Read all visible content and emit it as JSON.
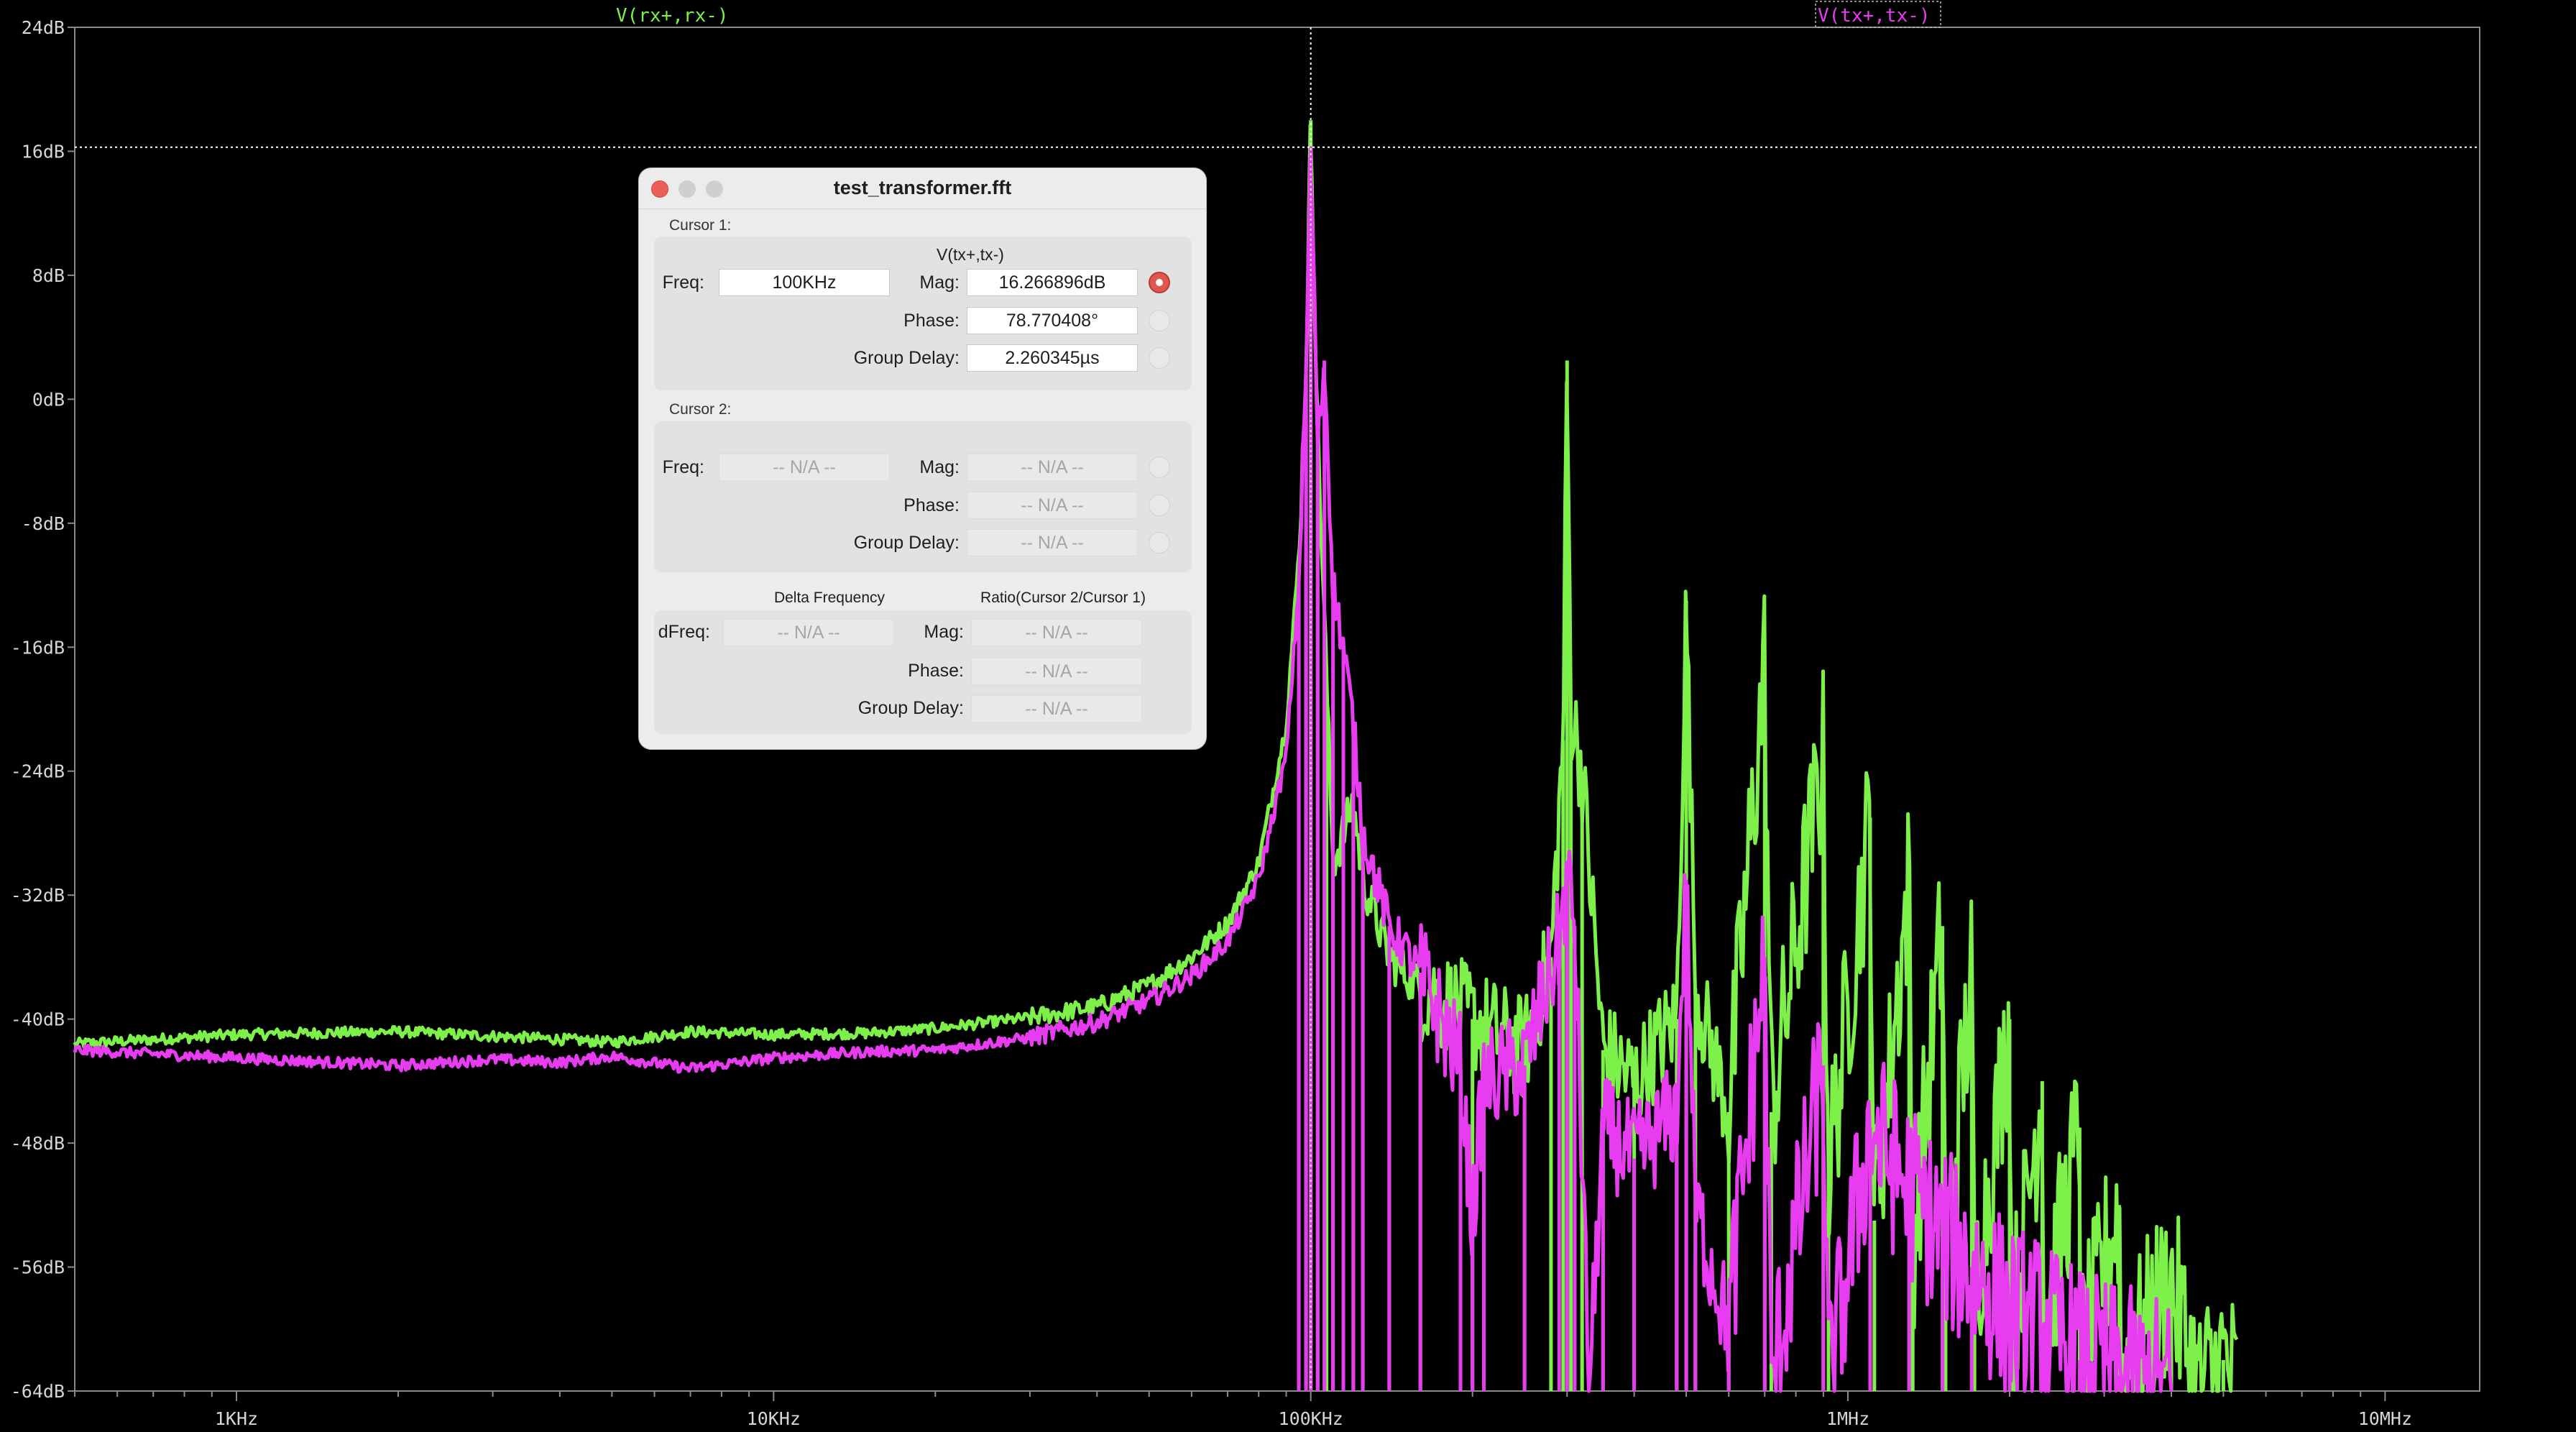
{
  "plot": {
    "trace_labels": [
      {
        "text": "V(rx+,rx-)",
        "color": "#7ef04a"
      },
      {
        "text": "V(tx+,tx-)",
        "color": "#e83cf0"
      }
    ],
    "colors": {
      "background": "#000000",
      "grid": "#8a8a8a",
      "cursor": "#ffffff"
    },
    "cursor_1": {
      "freq_hz": 100000,
      "mag_db": 16.266896
    }
  },
  "chart_data": {
    "type": "line",
    "x_scale": "log",
    "xlim_hz": [
      500,
      15000000
    ],
    "ylim_db": [
      -64,
      24
    ],
    "y_ticks": [
      "24dB",
      "16dB",
      "8dB",
      "0dB",
      "-8dB",
      "-16dB",
      "-24dB",
      "-32dB",
      "-40dB",
      "-48dB",
      "-56dB",
      "-64dB"
    ],
    "x_ticks": [
      "1KHz",
      "10KHz",
      "100KHz",
      "1MHz",
      "10MHz"
    ],
    "series": [
      {
        "name": "V(rx+,rx-)",
        "color": "#7ef04a",
        "points": [
          [
            500,
            -41.6
          ],
          [
            1000,
            -41.0
          ],
          [
            2000,
            -40.8
          ],
          [
            3000,
            -41.1
          ],
          [
            4000,
            -41.3
          ],
          [
            5000,
            -41.5
          ],
          [
            7000,
            -40.8
          ],
          [
            10000,
            -41.0
          ],
          [
            15000,
            -40.9
          ],
          [
            20000,
            -40.6
          ],
          [
            30000,
            -39.9
          ],
          [
            40000,
            -39.2
          ],
          [
            50000,
            -37.8
          ],
          [
            60000,
            -36.0
          ],
          [
            70000,
            -33.8
          ],
          [
            80000,
            -29.9
          ],
          [
            90000,
            -21.0
          ],
          [
            95000,
            -10.0
          ],
          [
            98000,
            2.0
          ],
          [
            100000,
            18.0
          ],
          [
            103000,
            -2.0
          ],
          [
            107000,
            -18.0
          ],
          [
            110000,
            -30.0
          ],
          [
            115000,
            -28.0
          ],
          [
            120000,
            -26.0
          ],
          [
            125000,
            -31.0
          ],
          [
            140000,
            -36.0
          ],
          [
            160000,
            -38.0
          ],
          [
            200000,
            -40.0
          ],
          [
            250000,
            -42.0
          ],
          [
            280000,
            -36.0
          ],
          [
            295000,
            -22.0
          ],
          [
            300000,
            2.5
          ],
          [
            305000,
            -20.0
          ],
          [
            320000,
            -24.0
          ],
          [
            350000,
            -42.0
          ],
          [
            400000,
            -44.0
          ],
          [
            480000,
            -40.0
          ],
          [
            500000,
            -13.0
          ],
          [
            520000,
            -38.0
          ],
          [
            600000,
            -46.0
          ],
          [
            700000,
            -17.0
          ],
          [
            720000,
            -46.0
          ],
          [
            900000,
            -23.0
          ],
          [
            920000,
            -50.0
          ],
          [
            1100000,
            -27.0
          ],
          [
            1120000,
            -53.0
          ],
          [
            1300000,
            -31.0
          ],
          [
            1320000,
            -55.0
          ],
          [
            1500000,
            -34.0
          ],
          [
            1520000,
            -56.0
          ],
          [
            1700000,
            -37.0
          ],
          [
            1720000,
            -58.0
          ],
          [
            2000000,
            -40.0
          ],
          [
            2020000,
            -60.0
          ],
          [
            2300000,
            -44.0
          ],
          [
            2320000,
            -60.0
          ],
          [
            2700000,
            -47.0
          ],
          [
            2720000,
            -62.0
          ],
          [
            3200000,
            -52.0
          ],
          [
            3220000,
            -63.0
          ],
          [
            4000000,
            -57.0
          ],
          [
            4500000,
            -64.0
          ],
          [
            5000000,
            -62.0
          ],
          [
            5300000,
            -64.0
          ]
        ]
      },
      {
        "name": "V(tx+,tx-)",
        "color": "#e83cf0",
        "points": [
          [
            500,
            -42.0
          ],
          [
            1000,
            -42.5
          ],
          [
            2000,
            -43.0
          ],
          [
            3000,
            -42.6
          ],
          [
            4000,
            -42.8
          ],
          [
            5000,
            -42.4
          ],
          [
            7000,
            -43.2
          ],
          [
            10000,
            -42.5
          ],
          [
            15000,
            -42.1
          ],
          [
            20000,
            -42.0
          ],
          [
            30000,
            -41.2
          ],
          [
            40000,
            -40.2
          ],
          [
            50000,
            -38.8
          ],
          [
            60000,
            -37.2
          ],
          [
            70000,
            -35.0
          ],
          [
            80000,
            -31.0
          ],
          [
            90000,
            -23.0
          ],
          [
            95000,
            -12.0
          ],
          [
            98000,
            2.0
          ],
          [
            100000,
            16.3
          ],
          [
            103000,
            -3.0
          ],
          [
            106000,
            2.5
          ],
          [
            110000,
            -12.0
          ],
          [
            115000,
            -16.0
          ],
          [
            120000,
            -21.0
          ],
          [
            125000,
            -28.0
          ],
          [
            140000,
            -34.0
          ],
          [
            160000,
            -37.0
          ],
          [
            190000,
            -43.0
          ],
          [
            200000,
            -53.0
          ],
          [
            210000,
            -44.0
          ],
          [
            250000,
            -43.0
          ],
          [
            290000,
            -35.0
          ],
          [
            300000,
            -31.0
          ],
          [
            310000,
            -34.0
          ],
          [
            330000,
            -64.0
          ],
          [
            350000,
            -47.0
          ],
          [
            400000,
            -49.0
          ],
          [
            480000,
            -46.0
          ],
          [
            500000,
            -31.0
          ],
          [
            520000,
            -52.0
          ],
          [
            600000,
            -60.0
          ],
          [
            700000,
            -36.0
          ],
          [
            720000,
            -64.0
          ],
          [
            900000,
            -43.0
          ],
          [
            920000,
            -64.0
          ],
          [
            1100000,
            -47.0
          ],
          [
            1300000,
            -51.0
          ],
          [
            1500000,
            -54.0
          ],
          [
            1700000,
            -56.0
          ],
          [
            2000000,
            -59.0
          ],
          [
            2300000,
            -60.0
          ],
          [
            2700000,
            -62.0
          ],
          [
            3200000,
            -63.0
          ],
          [
            4000000,
            -64.0
          ]
        ]
      }
    ]
  },
  "dialog": {
    "title": "test_transformer.fft",
    "cursor1": {
      "label": "Cursor 1:",
      "trace": "V(tx+,tx-)",
      "freq_label": "Freq:",
      "freq": "100KHz",
      "mag_label": "Mag:",
      "mag": "16.266896dB",
      "phase_label": "Phase:",
      "phase": "78.770408°",
      "gd_label": "Group Delay:",
      "gd": "2.260345µs"
    },
    "cursor2": {
      "label": "Cursor 2:",
      "freq_label": "Freq:",
      "freq": "-- N/A --",
      "mag_label": "Mag:",
      "mag": "-- N/A --",
      "phase_label": "Phase:",
      "phase": "-- N/A --",
      "gd_label": "Group Delay:",
      "gd": "-- N/A --"
    },
    "delta": {
      "freq_header": "Delta Frequency",
      "ratio_header": "Ratio(Cursor 2/Cursor 1)",
      "dfreq_label": "dFreq:",
      "dfreq": "-- N/A --",
      "mag_label": "Mag:",
      "mag": "-- N/A --",
      "phase_label": "Phase:",
      "phase": "-- N/A --",
      "gd_label": "Group Delay:",
      "gd": "-- N/A --"
    }
  }
}
